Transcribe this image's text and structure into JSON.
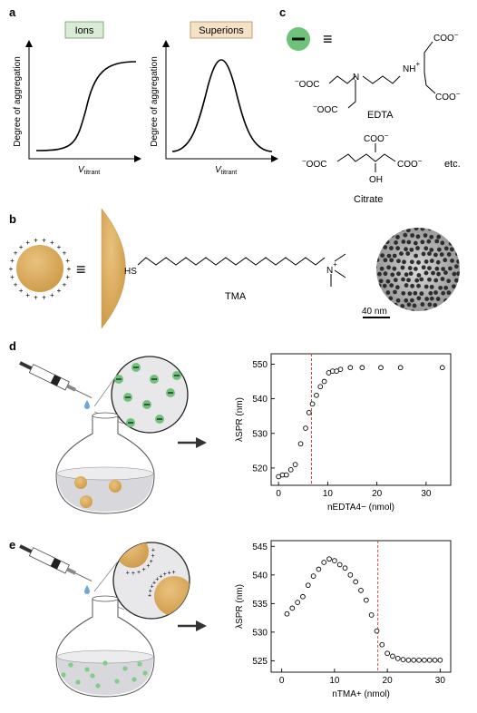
{
  "panel_labels": {
    "a": "a",
    "b": "b",
    "c": "c",
    "d": "d",
    "e": "e"
  },
  "panel_a": {
    "ions_label": "Ions",
    "superions_label": "Superions",
    "ylabel": "Degree of aggregation",
    "xlabel_main": "V",
    "xlabel_sub": "titrant"
  },
  "panel_b": {
    "sh_label": "HS",
    "tma_label": "TMA",
    "n_plus": "+",
    "scale_label": "40 nm"
  },
  "panel_c": {
    "equiv": "≡",
    "edta_label": "EDTA",
    "citrate_label": "Citrate",
    "etc_label": "etc.",
    "coo": "COO",
    "ooc": "OOC",
    "nh": "NH",
    "n": "N",
    "oh": "OH",
    "minus": "−",
    "plus": "+"
  },
  "chart_data": [
    {
      "type": "scatter",
      "panel": "d",
      "ylabel": "λSPR (nm)",
      "xlabel": "nEDTA4− (nmol)",
      "xlim": [
        -1.5,
        35
      ],
      "ylim": [
        515,
        553
      ],
      "xticks": [
        0,
        10,
        20,
        30
      ],
      "yticks": [
        520,
        530,
        540,
        550
      ],
      "threshold_x": 6.7,
      "x": [
        0,
        0.8,
        1.6,
        2.5,
        3.4,
        4.5,
        5.5,
        6.2,
        6.9,
        7.7,
        8.5,
        9.3,
        10.2,
        11.0,
        11.8,
        12.6,
        14.6,
        17.0,
        20.8,
        24.8,
        33.3
      ],
      "y": [
        517.5,
        518.0,
        518.0,
        519.5,
        521.0,
        527.0,
        531.5,
        536.0,
        538.5,
        541.0,
        543.5,
        545.0,
        547.5,
        548.0,
        548.0,
        548.5,
        549.0,
        549.0,
        549.0,
        549.0,
        549.0
      ]
    },
    {
      "type": "scatter",
      "panel": "e",
      "ylabel": "λSPR (nm)",
      "xlabel": "nTMA+ (nmol)",
      "xlim": [
        -2,
        32
      ],
      "ylim": [
        523,
        546
      ],
      "xticks": [
        0,
        10,
        20,
        30
      ],
      "yticks": [
        525,
        530,
        535,
        540,
        545
      ],
      "threshold_x": 18.2,
      "x": [
        1,
        2,
        3,
        4,
        5,
        6,
        7,
        8,
        9,
        10,
        11,
        12,
        13,
        14,
        15,
        16,
        17,
        18,
        19,
        20,
        21,
        22,
        23,
        24,
        25,
        26,
        27,
        28,
        29,
        30
      ],
      "y": [
        533.2,
        534.2,
        535.2,
        536.2,
        538.2,
        539.8,
        541.0,
        542.2,
        542.8,
        542.5,
        541.8,
        541.2,
        540.0,
        538.8,
        537.3,
        535.6,
        533.0,
        530.2,
        527.8,
        526.3,
        525.8,
        525.4,
        525.2,
        525.1,
        525.1,
        525.1,
        525.1,
        525.1,
        525.1,
        525.1
      ]
    }
  ]
}
